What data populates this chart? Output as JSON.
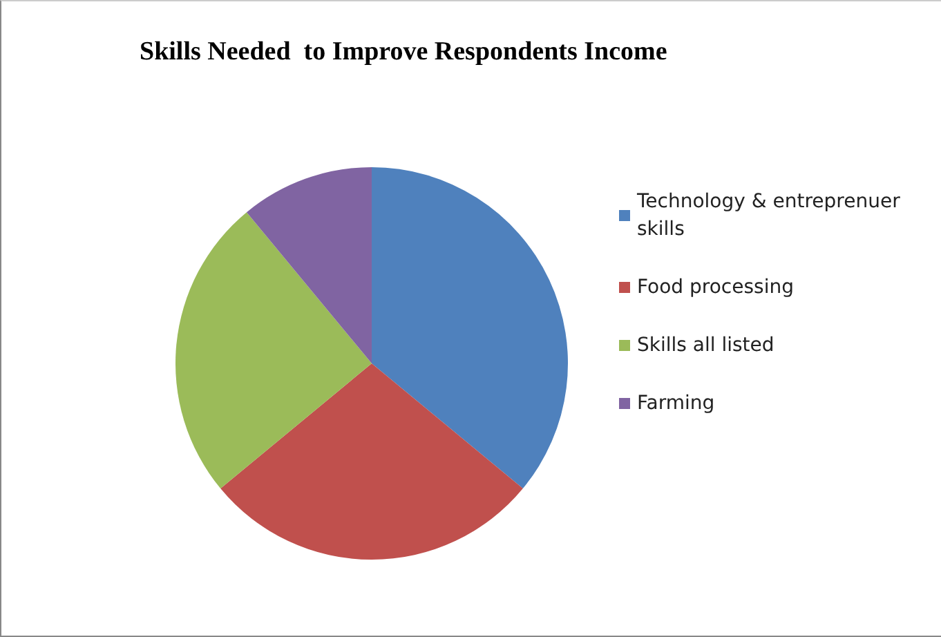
{
  "chart_data": {
    "type": "pie",
    "title": "Skills Needed  to Improve Respondents Income",
    "categories": [
      "Technology & entreprenuer skills",
      "Food processing",
      "Skills all listed",
      "Farming"
    ],
    "values": [
      36,
      28,
      25,
      11
    ],
    "colors": [
      "#4f81bd",
      "#c0504d",
      "#9bbb59",
      "#8064a2"
    ],
    "legend": "right"
  }
}
